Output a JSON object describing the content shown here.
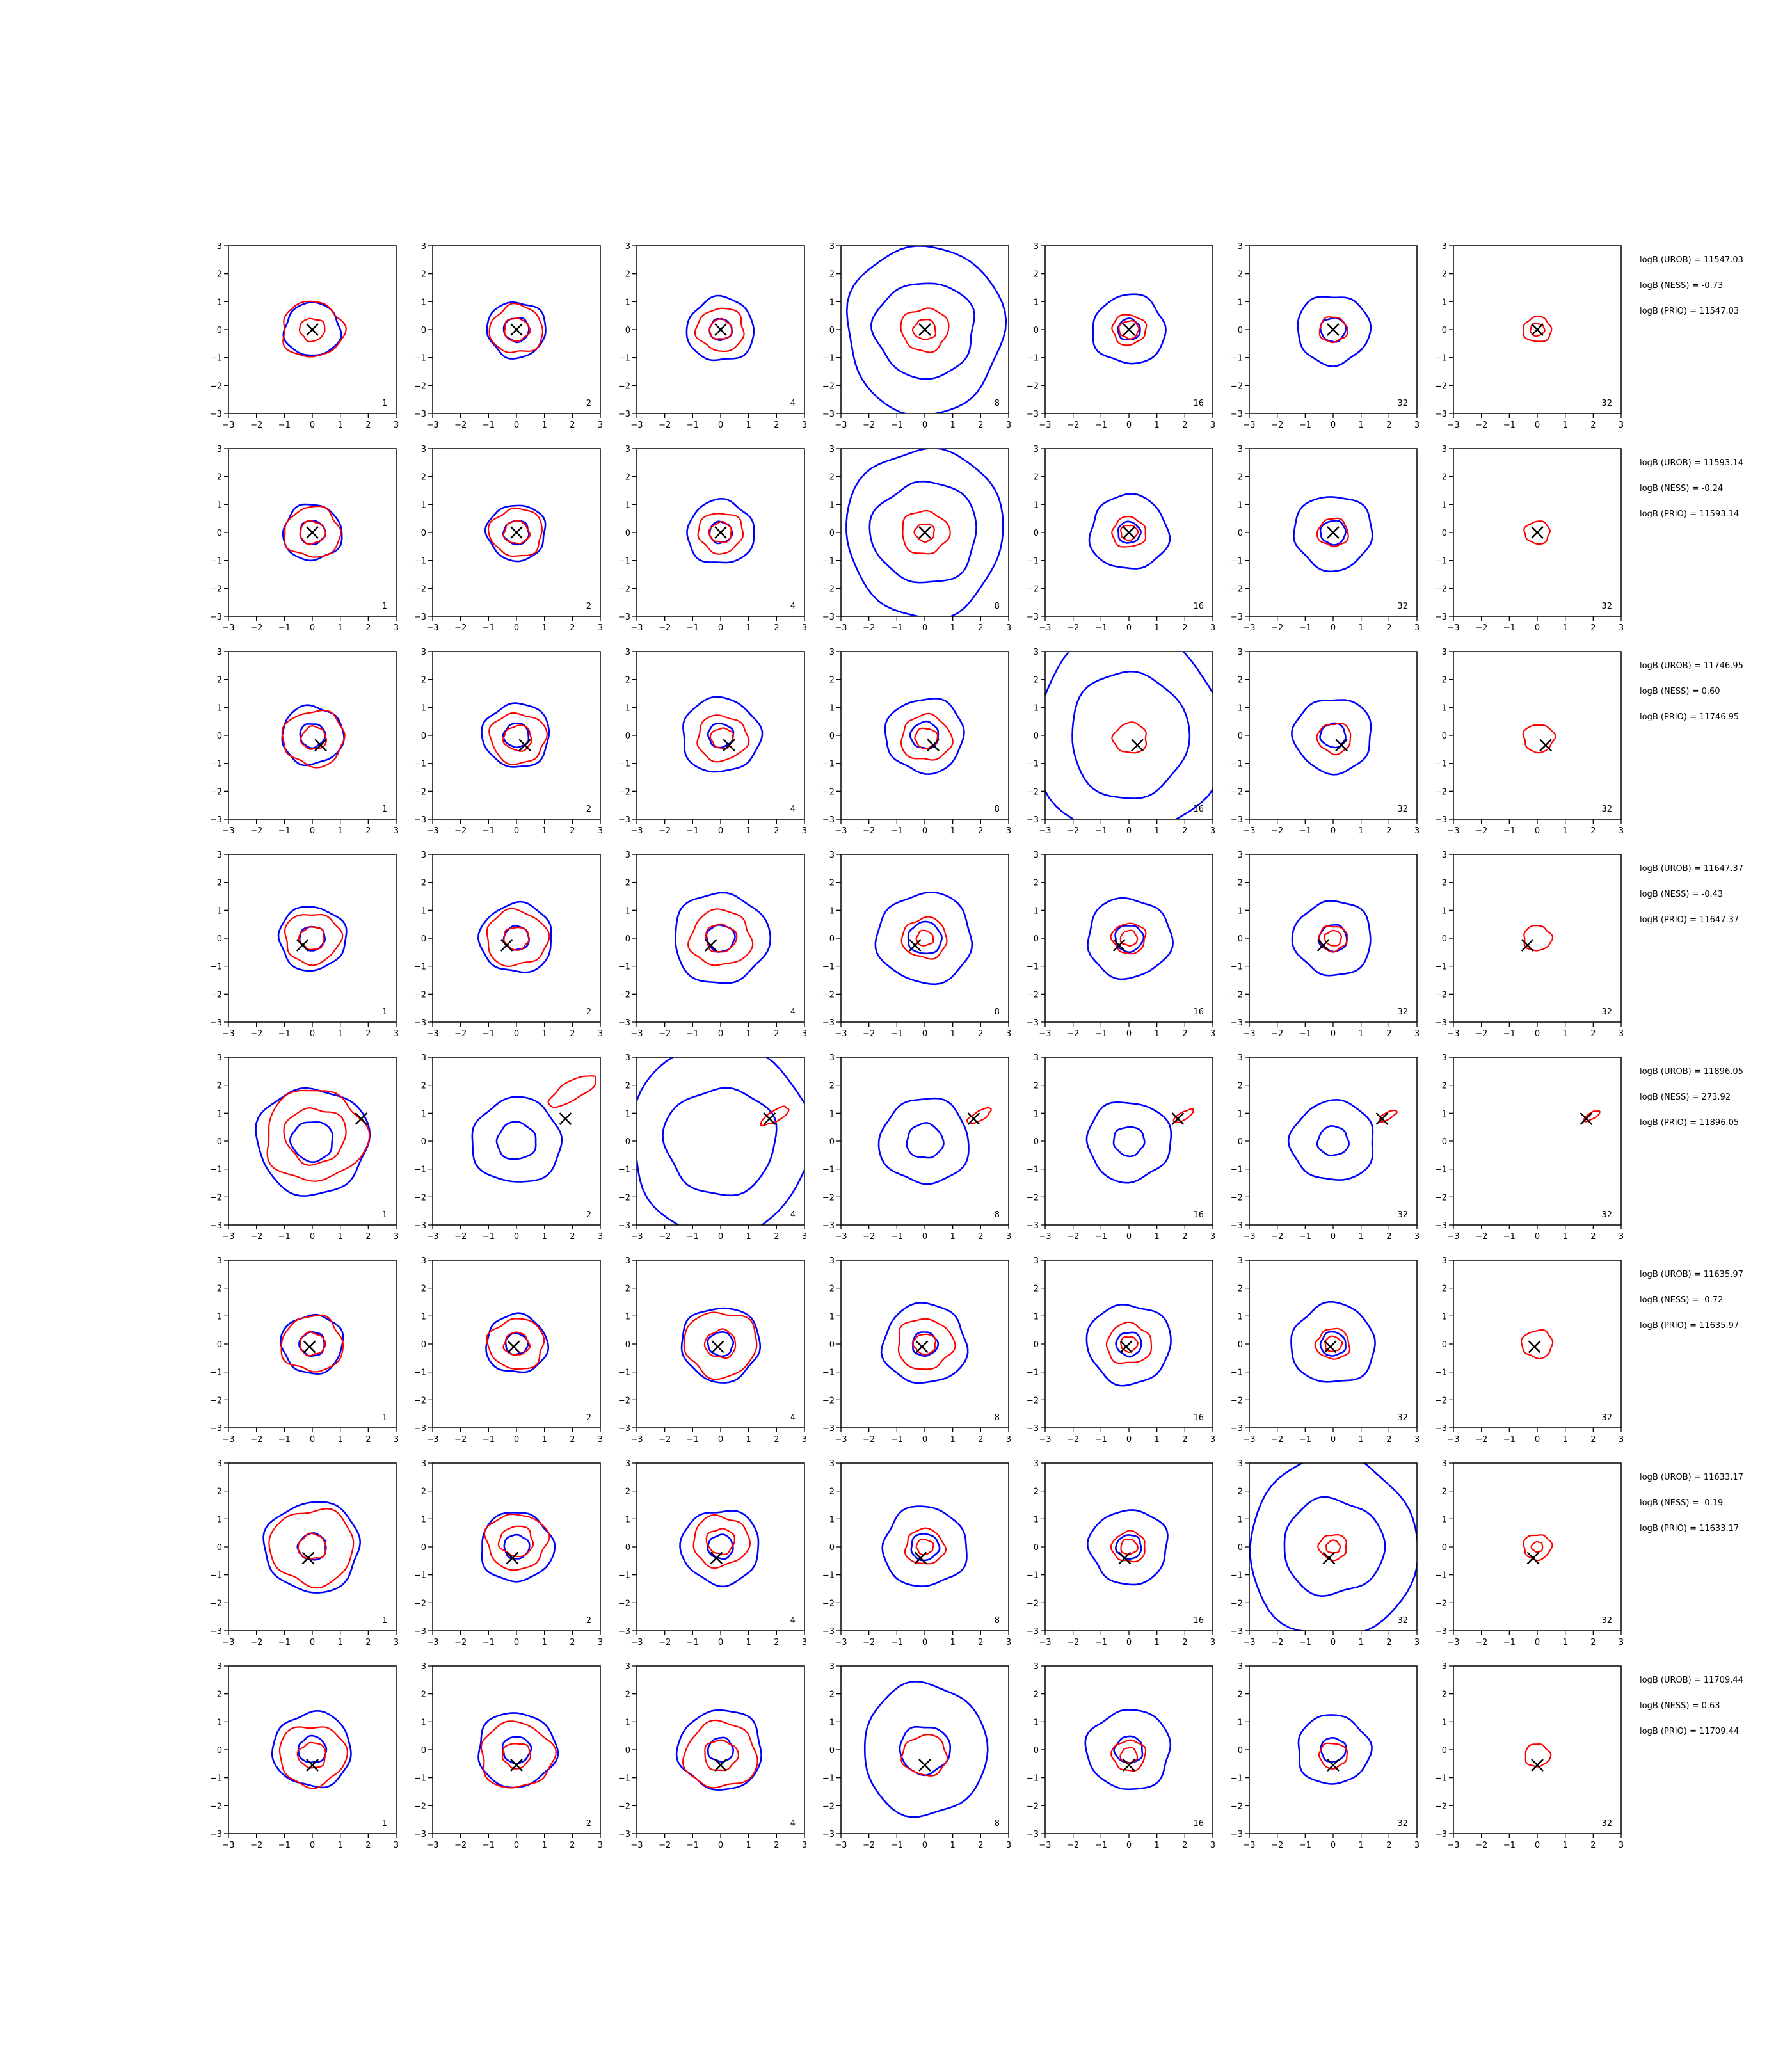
{
  "figure": {
    "grid_rows": 8,
    "grid_cols": 7,
    "axis_ticks": [
      "−3",
      "−2",
      "−1",
      "0",
      "1",
      "2",
      "3"
    ],
    "panel_labels": [
      "1",
      "2",
      "4",
      "8",
      "16",
      "32",
      "32"
    ],
    "colors": {
      "blue": "#0000ff",
      "red": "#ff0000",
      "marker": "#000000",
      "axes": "#000000"
    }
  },
  "chart_data": [
    {
      "type": "contour",
      "row": 1,
      "marker": [
        0.0,
        0.0
      ],
      "xlim": [
        -3,
        3
      ],
      "ylim": [
        -3,
        3
      ],
      "panels": [
        {
          "label": "1",
          "blue": [
            1.0
          ],
          "red": [
            1.1,
            0.45
          ]
        },
        {
          "label": "2",
          "blue": [
            1.05,
            0.45
          ],
          "red": [
            0.95,
            0.45
          ]
        },
        {
          "label": "4",
          "blue": [
            1.2,
            0.4
          ],
          "red": [
            0.85,
            0.4
          ]
        },
        {
          "label": "8",
          "blue": [
            2.8,
            1.8
          ],
          "red": [
            0.85,
            0.4
          ]
        },
        {
          "label": "16",
          "blue": [
            1.3,
            0.4
          ],
          "red": [
            0.6,
            0.35
          ]
        },
        {
          "label": "32",
          "blue": [
            1.3,
            0.45
          ],
          "red": [
            0.5
          ]
        },
        {
          "label": "32",
          "blue": [],
          "red": [
            0.5,
            0.25
          ]
        }
      ],
      "annotations": [
        "logB (UROB) = 11547.03",
        "logB (NESS) = -0.73",
        "logB (PRIO) = 11547.03"
      ]
    },
    {
      "type": "contour",
      "row": 2,
      "marker": [
        0.0,
        0.0
      ],
      "xlim": [
        -3,
        3
      ],
      "ylim": [
        -3,
        3
      ],
      "panels": [
        {
          "label": "1",
          "blue": [
            1.05,
            0.45
          ],
          "red": [
            1.0,
            0.45
          ]
        },
        {
          "label": "2",
          "blue": [
            1.05,
            0.45
          ],
          "red": [
            0.95,
            0.45
          ]
        },
        {
          "label": "4",
          "blue": [
            1.2,
            0.4
          ],
          "red": [
            0.8,
            0.4
          ]
        },
        {
          "label": "8",
          "blue": [
            2.8,
            1.9
          ],
          "red": [
            0.85,
            0.35
          ]
        },
        {
          "label": "16",
          "blue": [
            1.4,
            0.4
          ],
          "red": [
            0.6,
            0.3
          ]
        },
        {
          "label": "32",
          "blue": [
            1.4,
            0.45
          ],
          "red": [
            0.55
          ]
        },
        {
          "label": "32",
          "blue": [],
          "red": [
            0.45
          ]
        }
      ],
      "annotations": [
        "logB (UROB) = 11593.14",
        "logB (NESS) = -0.24",
        "logB (PRIO) = 11593.14"
      ]
    },
    {
      "type": "contour",
      "row": 3,
      "marker": [
        0.3,
        -0.35
      ],
      "xlim": [
        -3,
        3
      ],
      "ylim": [
        -3,
        3
      ],
      "panels": [
        {
          "label": "1",
          "blue": [
            1.1,
            0.45
          ],
          "red": [
            1.1,
            0.45
          ]
        },
        {
          "label": "2",
          "blue": [
            1.2,
            0.45
          ],
          "red": [
            1.0,
            0.5
          ]
        },
        {
          "label": "4",
          "blue": [
            1.4,
            0.45
          ],
          "red": [
            0.9,
            0.4
          ]
        },
        {
          "label": "8",
          "blue": [
            1.4,
            0.5
          ],
          "red": [
            0.9,
            0.4
          ]
        },
        {
          "label": "16",
          "blue": [
            3.4,
            2.1
          ],
          "red": [
            0.6
          ]
        },
        {
          "label": "32",
          "blue": [
            1.4,
            0.45
          ],
          "red": [
            0.6
          ]
        },
        {
          "label": "32",
          "blue": [],
          "red": [
            0.55
          ]
        }
      ],
      "annotations": [
        "logB (UROB) = 11746.95",
        "logB (NESS) = 0.60",
        "logB (PRIO) = 11746.95"
      ]
    },
    {
      "type": "contour",
      "row": 4,
      "marker": [
        -0.35,
        -0.25
      ],
      "xlim": [
        -3,
        3
      ],
      "ylim": [
        -3,
        3
      ],
      "panels": [
        {
          "label": "1",
          "blue": [
            1.2,
            0.45
          ],
          "red": [
            1.0,
            0.45
          ]
        },
        {
          "label": "2",
          "blue": [
            1.3,
            0.45
          ],
          "red": [
            1.1,
            0.45
          ]
        },
        {
          "label": "4",
          "blue": [
            1.7,
            0.5
          ],
          "red": [
            1.1,
            0.55
          ]
        },
        {
          "label": "8",
          "blue": [
            1.7,
            0.6
          ],
          "red": [
            0.8,
            0.3
          ]
        },
        {
          "label": "16",
          "blue": [
            1.5,
            0.5
          ],
          "red": [
            0.6,
            0.3
          ]
        },
        {
          "label": "32",
          "blue": [
            1.4,
            0.5
          ],
          "red": [
            0.5,
            0.3
          ]
        },
        {
          "label": "32",
          "blue": [],
          "red": [
            0.5
          ]
        }
      ],
      "annotations": [
        "logB (UROB) = 11647.37",
        "logB (NESS) = -0.43",
        "logB (PRIO) = 11647.37"
      ]
    },
    {
      "type": "contour",
      "row": 5,
      "marker": [
        1.75,
        0.8
      ],
      "xlim": [
        -3,
        3
      ],
      "ylim": [
        -3,
        3
      ],
      "panels": [
        {
          "label": "1",
          "blue": [
            2.0,
            0.75
          ],
          "red": [
            1.8,
            1.1
          ]
        },
        {
          "label": "2",
          "blue": [
            1.6,
            0.7
          ],
          "red": [
            0.6
          ]
        },
        {
          "label": "4",
          "blue": [
            3.2,
            2.0
          ],
          "red": [
            0.35
          ]
        },
        {
          "label": "8",
          "blue": [
            1.6,
            0.65
          ],
          "red": [
            0.3
          ]
        },
        {
          "label": "16",
          "blue": [
            1.5,
            0.55
          ],
          "red": [
            0.25
          ]
        },
        {
          "label": "32",
          "blue": [
            1.5,
            0.55
          ],
          "red": [
            0.22
          ]
        },
        {
          "label": "32",
          "blue": [],
          "red": [
            0.2
          ]
        }
      ],
      "annotations": [
        "logB (UROB) = 11896.05",
        "logB (NESS) = 273.92",
        "logB (PRIO) = 11896.05"
      ]
    },
    {
      "type": "contour",
      "row": 6,
      "marker": [
        -0.1,
        -0.1
      ],
      "xlim": [
        -3,
        3
      ],
      "ylim": [
        -3,
        3
      ],
      "panels": [
        {
          "label": "1",
          "blue": [
            1.1,
            0.45
          ],
          "red": [
            1.1,
            0.45
          ]
        },
        {
          "label": "2",
          "blue": [
            1.1,
            0.4
          ],
          "red": [
            1.0,
            0.45
          ]
        },
        {
          "label": "4",
          "blue": [
            1.4,
            0.45
          ],
          "red": [
            1.3,
            0.55
          ]
        },
        {
          "label": "8",
          "blue": [
            1.5,
            0.45
          ],
          "red": [
            1.0,
            0.4
          ]
        },
        {
          "label": "16",
          "blue": [
            1.5,
            0.45
          ],
          "red": [
            0.8,
            0.3
          ]
        },
        {
          "label": "32",
          "blue": [
            1.5,
            0.45
          ],
          "red": [
            0.6,
            0.3
          ]
        },
        {
          "label": "32",
          "blue": [],
          "red": [
            0.55
          ]
        }
      ],
      "annotations": [
        "logB (UROB) = 11635.97",
        "logB (NESS) = -0.72",
        "logB (PRIO) = 11635.97"
      ]
    },
    {
      "type": "contour",
      "row": 7,
      "marker": [
        -0.15,
        -0.4
      ],
      "xlim": [
        -3,
        3
      ],
      "ylim": [
        -3,
        3
      ],
      "panels": [
        {
          "label": "1",
          "blue": [
            1.7,
            0.5
          ],
          "red": [
            1.5,
            0.5
          ]
        },
        {
          "label": "2",
          "blue": [
            1.3,
            0.45
          ],
          "red": [
            1.1,
            0.6
          ]
        },
        {
          "label": "4",
          "blue": [
            1.4,
            0.45
          ],
          "red": [
            1.0,
            0.5
          ]
        },
        {
          "label": "8",
          "blue": [
            1.5,
            0.5
          ],
          "red": [
            0.7,
            0.3
          ]
        },
        {
          "label": "16",
          "blue": [
            1.4,
            0.45
          ],
          "red": [
            0.6,
            0.3
          ]
        },
        {
          "label": "32",
          "blue": [
            3.0,
            1.8
          ],
          "red": [
            0.5,
            0.25
          ]
        },
        {
          "label": "32",
          "blue": [],
          "red": [
            0.5,
            0.2
          ]
        }
      ],
      "annotations": [
        "logB (UROB) = 11633.17",
        "logB (NESS) = -0.19",
        "logB (PRIO) = 11633.17"
      ]
    },
    {
      "type": "contour",
      "row": 8,
      "marker": [
        0.0,
        -0.55
      ],
      "xlim": [
        -3,
        3
      ],
      "ylim": [
        -3,
        3
      ],
      "panels": [
        {
          "label": "1",
          "blue": [
            1.4,
            0.5
          ],
          "red": [
            1.2,
            0.5
          ]
        },
        {
          "label": "2",
          "blue": [
            1.4,
            0.5
          ],
          "red": [
            1.3,
            0.5
          ]
        },
        {
          "label": "4",
          "blue": [
            1.5,
            0.45
          ],
          "red": [
            1.3,
            0.6
          ]
        },
        {
          "label": "8",
          "blue": [
            2.2,
            0.9
          ],
          "red": [
            0.8
          ]
        },
        {
          "label": "16",
          "blue": [
            1.5,
            0.5
          ],
          "red": [
            0.6,
            0.3
          ]
        },
        {
          "label": "32",
          "blue": [
            1.3,
            0.45
          ],
          "red": [
            0.5
          ]
        },
        {
          "label": "32",
          "blue": [],
          "red": [
            0.45
          ]
        }
      ],
      "annotations": [
        "logB (UROB) = 11709.44",
        "logB (NESS) = 0.63",
        "logB (PRIO) = 11709.44"
      ]
    }
  ]
}
